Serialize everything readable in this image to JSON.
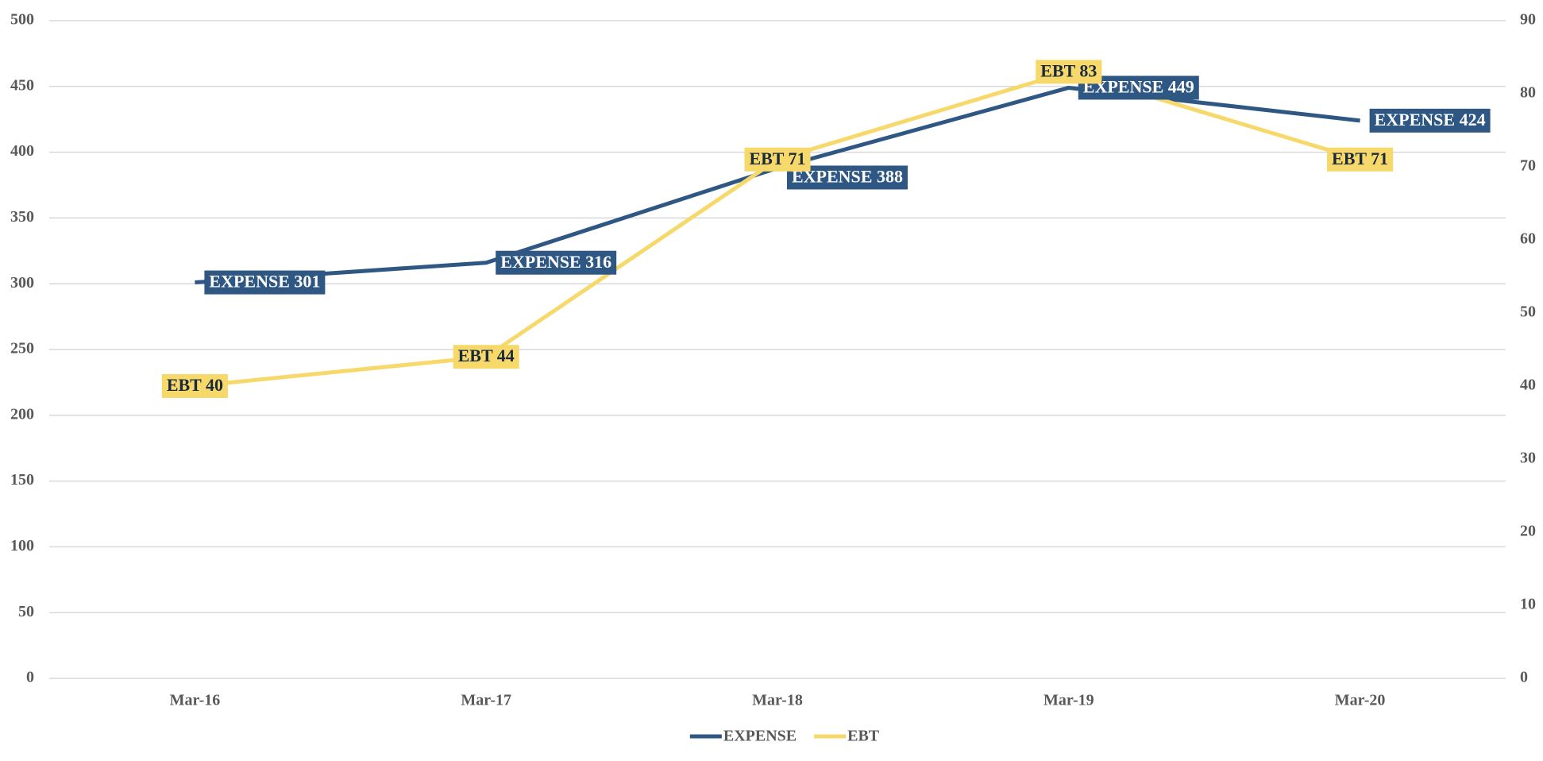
{
  "chart_data": {
    "type": "line",
    "categories": [
      "Mar-16",
      "Mar-17",
      "Mar-18",
      "Mar-19",
      "Mar-20"
    ],
    "series": [
      {
        "name": "EXPENSE",
        "color": "#2f5783",
        "values": [
          301,
          316,
          388,
          449,
          424
        ],
        "value_labels": [
          "EXPENSE 301",
          "EXPENSE 316",
          "EXPENSE 388",
          "EXPENSE 449",
          "EXPENSE 424"
        ]
      },
      {
        "name": "EBT",
        "color": "#f7d96b",
        "axis": "y2",
        "values": [
          40,
          44,
          71,
          83,
          71
        ],
        "value_labels": [
          "EBT 40",
          "EBT 44",
          "EBT 71",
          "EBT 83",
          "EBT 71"
        ]
      }
    ],
    "ylim": [
      0,
      500
    ],
    "yticks": [
      0,
      50,
      100,
      150,
      200,
      250,
      300,
      350,
      400,
      450,
      500
    ],
    "y2lim": [
      0,
      90
    ],
    "y2ticks": [
      0,
      10,
      20,
      30,
      40,
      50,
      60,
      70,
      80,
      90
    ],
    "grid": true,
    "legend": "bottom"
  }
}
